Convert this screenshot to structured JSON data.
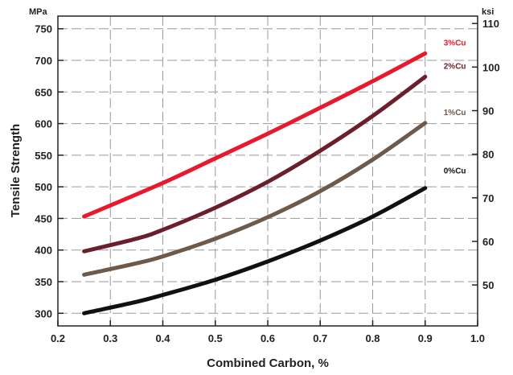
{
  "chart_data": {
    "type": "line",
    "title": "",
    "xlabel": "Combined Carbon, %",
    "ylabel": "Tensile Strength",
    "y_unit": "MPa",
    "y2_unit": "ksi",
    "xlim": [
      0.2,
      1.0
    ],
    "ylim": [
      280,
      770
    ],
    "y2lim": [
      40.6,
      111.7
    ],
    "x_ticks": [
      "0.2",
      "0.3",
      "0.4",
      "0.5",
      "0.6",
      "0.7",
      "0.8",
      "0.9",
      "1.0"
    ],
    "y_ticks": [
      "300",
      "350",
      "400",
      "450",
      "500",
      "550",
      "600",
      "650",
      "700",
      "750"
    ],
    "y2_ticks": [
      "50",
      "60",
      "70",
      "80",
      "90",
      "100",
      "110"
    ],
    "grid": true,
    "legend": "labels at line ends (right)",
    "series": [
      {
        "name": "3%Cu",
        "color": "#e8192c",
        "x": [
          0.25,
          0.4,
          0.5,
          0.6,
          0.7,
          0.8,
          0.9
        ],
        "y": [
          453,
          506,
          545,
          584,
          625,
          667,
          711
        ]
      },
      {
        "name": "2%Cu",
        "color": "#6b1f2c",
        "x": [
          0.25,
          0.35,
          0.4,
          0.5,
          0.6,
          0.7,
          0.8,
          0.9
        ],
        "y": [
          398,
          418,
          432,
          467,
          508,
          557,
          612,
          674
        ]
      },
      {
        "name": "1%Cu",
        "color": "#6e5a4a",
        "x": [
          0.25,
          0.35,
          0.4,
          0.5,
          0.6,
          0.7,
          0.8,
          0.9
        ],
        "y": [
          361,
          379,
          390,
          418,
          452,
          493,
          543,
          601
        ]
      },
      {
        "name": "0%Cu",
        "color": "#111111",
        "x": [
          0.25,
          0.35,
          0.4,
          0.5,
          0.6,
          0.7,
          0.8,
          0.9
        ],
        "y": [
          300,
          318,
          329,
          353,
          382,
          415,
          453,
          498
        ]
      }
    ]
  }
}
